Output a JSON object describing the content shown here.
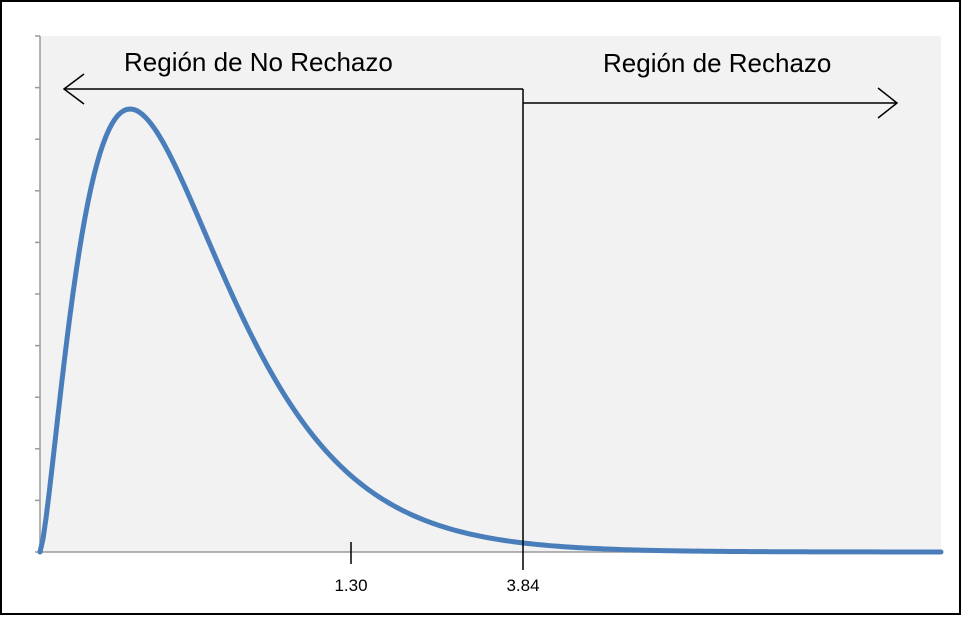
{
  "chart_data": {
    "type": "line",
    "title": "",
    "xlabel": "",
    "ylabel": "",
    "grid": false,
    "critical_value": 3.84,
    "x_tick_labels": [
      {
        "value": 1.3,
        "label": "1.30"
      },
      {
        "value": 3.84,
        "label": "3.84"
      }
    ],
    "annotations": {
      "left_region": "Región de No Rechazo",
      "right_region": "Región de Rechazo"
    },
    "curve": {
      "shape": "right-skewed density (chi-square, 1 df appearance)",
      "color": "#4a7ebb"
    },
    "xlim": [
      0,
      12
    ],
    "y_ticks_count": 10
  },
  "colors": {
    "plot_background": "#f2f2f2",
    "curve": "#4a7ebb",
    "axis": "#000000"
  }
}
